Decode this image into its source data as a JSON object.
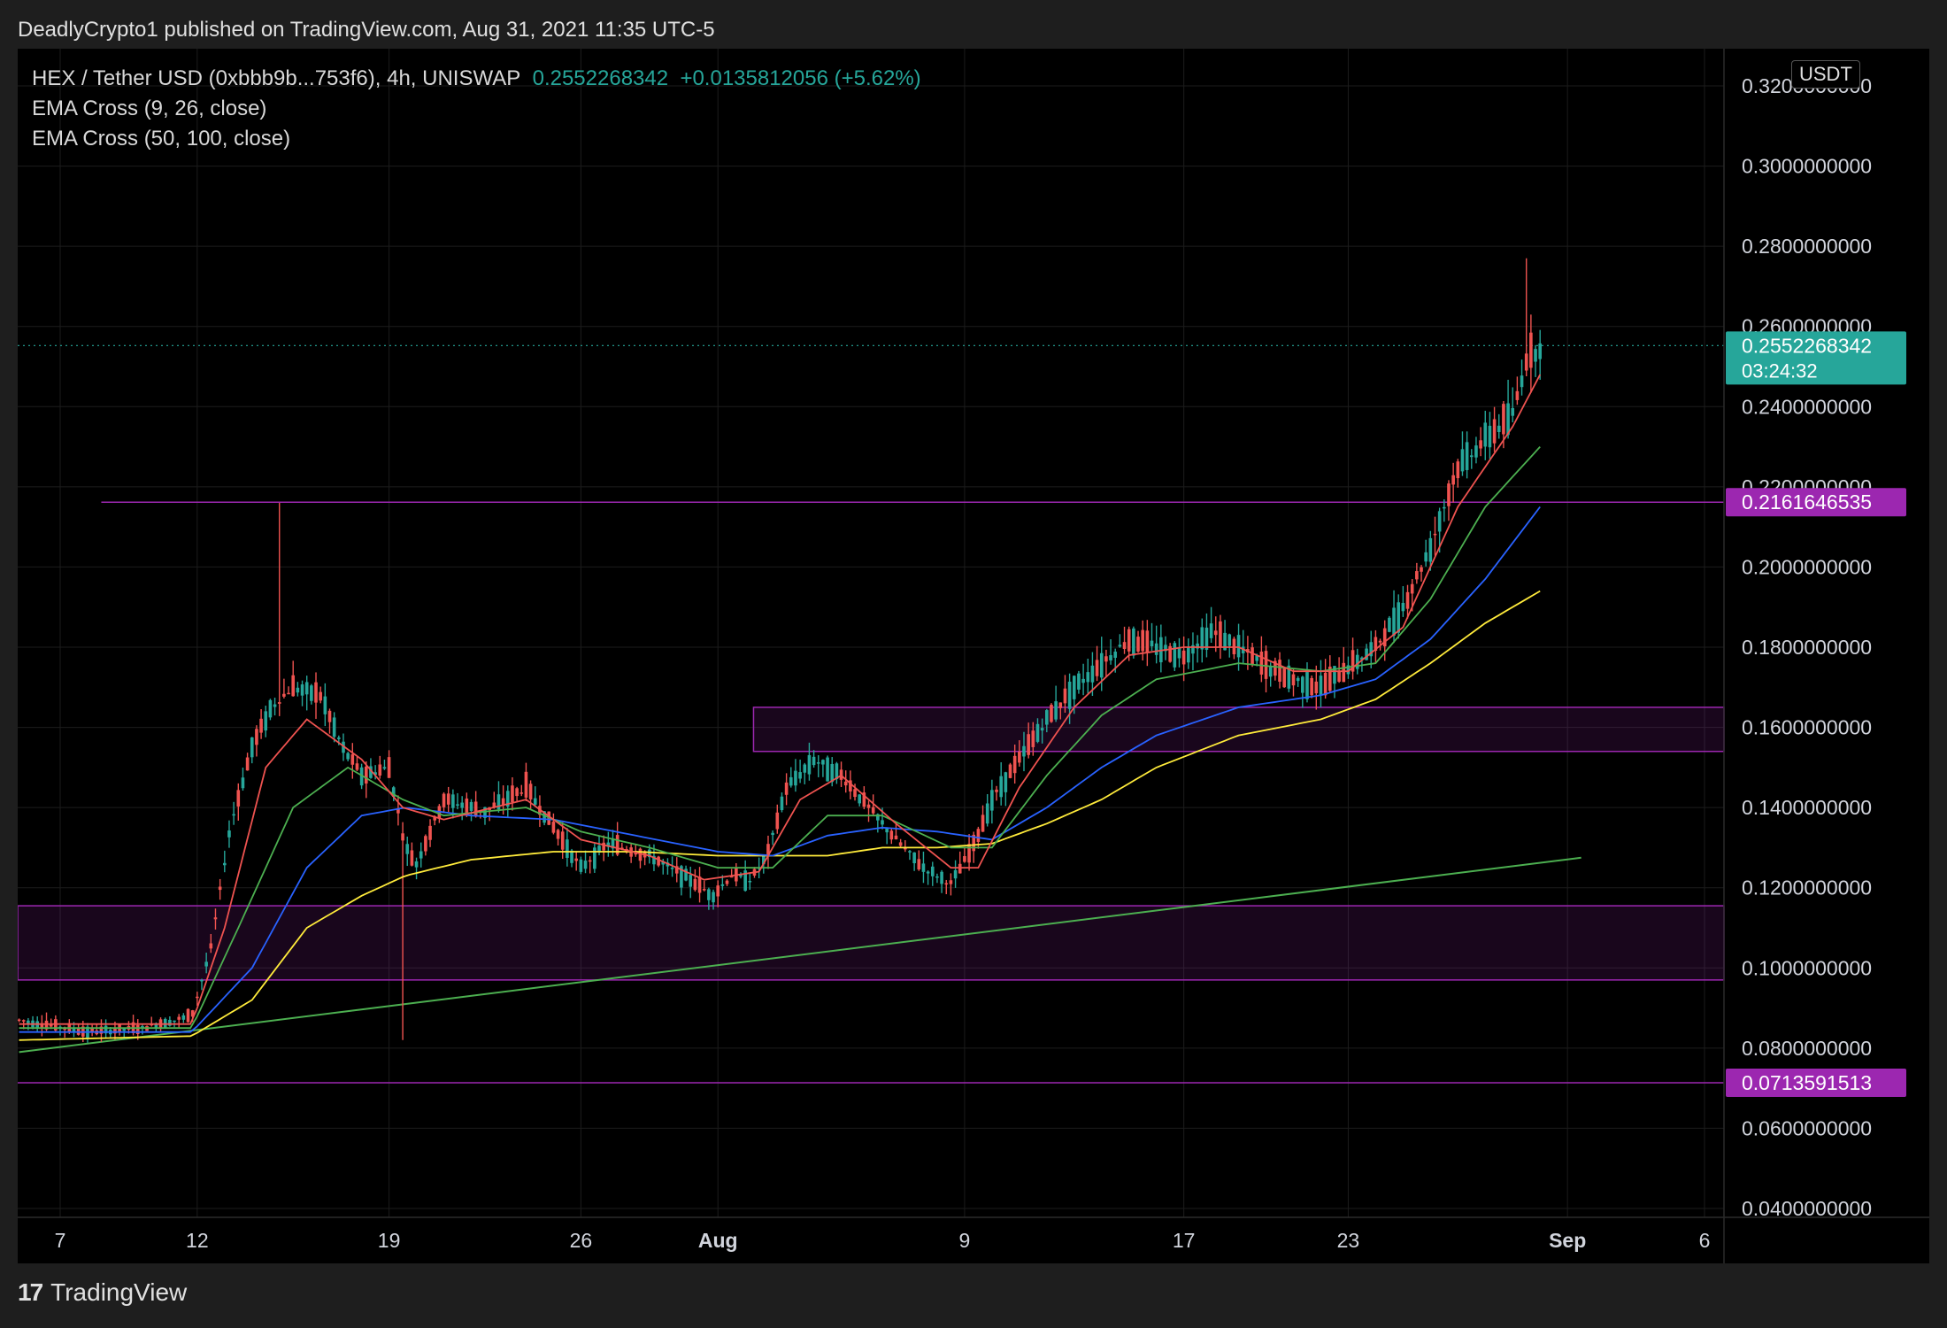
{
  "publisher_line": "DeadlyCrypto1 published on TradingView.com, Aug 31, 2021 11:35 UTC-5",
  "legend": {
    "symbol": "HEX / Tether USD (0xbbb9b...753f6), 4h, UNISWAP",
    "price": "0.2552268342",
    "change": "+0.0135812056 (+5.62%)",
    "ema1": "EMA Cross (9, 26, close)",
    "ema2": "EMA Cross (50, 100, close)"
  },
  "currency_badge": "USDT",
  "footer": {
    "logo": "17",
    "brand": "TradingView"
  },
  "colors": {
    "up": "#26a69a",
    "down": "#ef5350",
    "zone": "#9c27b0",
    "ema9": "#ef5350",
    "ema26": "#4caf50",
    "ema50": "#2962ff",
    "ema100": "#ffeb3b",
    "trendline": "#4caf50",
    "price_tag": "#26a69a",
    "level_tag": "#9c27b0"
  },
  "chart_data": {
    "type": "candlestick",
    "timeframe": "4h",
    "ylim": [
      0.04,
      0.32
    ],
    "y_ticks": [
      "0.3200000000",
      "0.3000000000",
      "0.2800000000",
      "0.2600000000",
      "0.2400000000",
      "0.2200000000",
      "0.2000000000",
      "0.1800000000",
      "0.1600000000",
      "0.1400000000",
      "0.1200000000",
      "0.1000000000",
      "0.0800000000",
      "0.0600000000",
      "0.0400000000"
    ],
    "x_ticks": [
      {
        "label": "7",
        "day": 7
      },
      {
        "label": "12",
        "day": 12
      },
      {
        "label": "19",
        "day": 19
      },
      {
        "label": "26",
        "day": 26
      },
      {
        "label": "Aug",
        "day": 31,
        "bold": true
      },
      {
        "label": "9",
        "day": 40
      },
      {
        "label": "17",
        "day": 48
      },
      {
        "label": "23",
        "day": 54
      },
      {
        "label": "Sep",
        "day": 62,
        "bold": true
      },
      {
        "label": "6",
        "day": 67
      }
    ],
    "last_price": {
      "value": 0.2552268342,
      "label": "0.2552268342",
      "countdown": "03:24:32"
    },
    "horizontal_levels": [
      {
        "value": 0.2161646535,
        "label": "0.2161646535"
      },
      {
        "value": 0.0713591513,
        "label": "0.0713591513"
      }
    ],
    "zones": [
      {
        "low": 0.154,
        "high": 0.165
      },
      {
        "low": 0.097,
        "high": 0.1155
      }
    ],
    "trendline": {
      "from": {
        "day": 5.5,
        "value": 0.079
      },
      "to": {
        "day": 62.5,
        "value": 0.1275
      }
    },
    "close_anchors": [
      [
        5.5,
        0.087
      ],
      [
        8,
        0.084
      ],
      [
        10,
        0.085
      ],
      [
        11.8,
        0.088
      ],
      [
        12.5,
        0.105
      ],
      [
        13.2,
        0.135
      ],
      [
        14,
        0.155
      ],
      [
        14.7,
        0.165
      ],
      [
        15.5,
        0.17
      ],
      [
        16.5,
        0.168
      ],
      [
        17.3,
        0.155
      ],
      [
        18,
        0.148
      ],
      [
        19,
        0.15
      ],
      [
        19.6,
        0.13
      ],
      [
        20,
        0.126
      ],
      [
        21,
        0.142
      ],
      [
        22.5,
        0.139
      ],
      [
        24,
        0.145
      ],
      [
        25,
        0.135
      ],
      [
        26,
        0.125
      ],
      [
        27,
        0.131
      ],
      [
        28.5,
        0.128
      ],
      [
        30,
        0.122
      ],
      [
        30.8,
        0.118
      ],
      [
        31.5,
        0.123
      ],
      [
        32.2,
        0.122
      ],
      [
        32.8,
        0.128
      ],
      [
        33.5,
        0.145
      ],
      [
        34.5,
        0.152
      ],
      [
        35.5,
        0.148
      ],
      [
        36.5,
        0.14
      ],
      [
        37.5,
        0.132
      ],
      [
        38.5,
        0.125
      ],
      [
        39.5,
        0.121
      ],
      [
        40.3,
        0.13
      ],
      [
        41,
        0.142
      ],
      [
        42,
        0.152
      ],
      [
        43,
        0.162
      ],
      [
        44,
        0.17
      ],
      [
        45,
        0.176
      ],
      [
        46,
        0.182
      ],
      [
        47,
        0.18
      ],
      [
        48,
        0.178
      ],
      [
        49,
        0.184
      ],
      [
        50,
        0.18
      ],
      [
        51,
        0.175
      ],
      [
        52,
        0.172
      ],
      [
        53,
        0.17
      ],
      [
        54,
        0.175
      ],
      [
        55,
        0.18
      ],
      [
        56,
        0.19
      ],
      [
        57,
        0.205
      ],
      [
        58,
        0.225
      ],
      [
        59,
        0.232
      ],
      [
        60,
        0.238
      ],
      [
        60.5,
        0.252
      ],
      [
        61,
        0.255
      ]
    ],
    "ema_9_anchors": [
      [
        5.5,
        0.086
      ],
      [
        11.8,
        0.086
      ],
      [
        13,
        0.11
      ],
      [
        14.5,
        0.15
      ],
      [
        16,
        0.162
      ],
      [
        18,
        0.152
      ],
      [
        19.5,
        0.14
      ],
      [
        21,
        0.137
      ],
      [
        24,
        0.142
      ],
      [
        26,
        0.132
      ],
      [
        28.5,
        0.128
      ],
      [
        30.5,
        0.122
      ],
      [
        32.5,
        0.124
      ],
      [
        34,
        0.142
      ],
      [
        35.5,
        0.148
      ],
      [
        37.5,
        0.136
      ],
      [
        39.5,
        0.125
      ],
      [
        40.5,
        0.125
      ],
      [
        42,
        0.145
      ],
      [
        44,
        0.165
      ],
      [
        46,
        0.178
      ],
      [
        48,
        0.18
      ],
      [
        50,
        0.18
      ],
      [
        52,
        0.174
      ],
      [
        54,
        0.174
      ],
      [
        56,
        0.185
      ],
      [
        58,
        0.215
      ],
      [
        60,
        0.235
      ],
      [
        61,
        0.248
      ]
    ],
    "ema_26_anchors": [
      [
        5.5,
        0.085
      ],
      [
        11.8,
        0.085
      ],
      [
        13.5,
        0.11
      ],
      [
        15.5,
        0.14
      ],
      [
        17.5,
        0.15
      ],
      [
        19.5,
        0.142
      ],
      [
        21,
        0.138
      ],
      [
        24,
        0.14
      ],
      [
        26,
        0.134
      ],
      [
        28.5,
        0.13
      ],
      [
        31,
        0.125
      ],
      [
        33,
        0.125
      ],
      [
        35,
        0.138
      ],
      [
        37,
        0.138
      ],
      [
        39.5,
        0.13
      ],
      [
        41,
        0.13
      ],
      [
        43,
        0.148
      ],
      [
        45,
        0.163
      ],
      [
        47,
        0.172
      ],
      [
        50,
        0.176
      ],
      [
        53,
        0.174
      ],
      [
        55,
        0.176
      ],
      [
        57,
        0.192
      ],
      [
        59,
        0.215
      ],
      [
        61,
        0.23
      ]
    ],
    "ema_50_anchors": [
      [
        5.5,
        0.084
      ],
      [
        11.8,
        0.084
      ],
      [
        14,
        0.1
      ],
      [
        16,
        0.125
      ],
      [
        18,
        0.138
      ],
      [
        19.6,
        0.14
      ],
      [
        22,
        0.138
      ],
      [
        25,
        0.137
      ],
      [
        28,
        0.133
      ],
      [
        31,
        0.129
      ],
      [
        33,
        0.128
      ],
      [
        35,
        0.133
      ],
      [
        37,
        0.135
      ],
      [
        39,
        0.134
      ],
      [
        41,
        0.132
      ],
      [
        43,
        0.14
      ],
      [
        45,
        0.15
      ],
      [
        47,
        0.158
      ],
      [
        50,
        0.165
      ],
      [
        53,
        0.168
      ],
      [
        55,
        0.172
      ],
      [
        57,
        0.182
      ],
      [
        59,
        0.197
      ],
      [
        61,
        0.215
      ]
    ],
    "ema_100_anchors": [
      [
        5.5,
        0.082
      ],
      [
        11.8,
        0.083
      ],
      [
        14,
        0.092
      ],
      [
        16,
        0.11
      ],
      [
        18,
        0.118
      ],
      [
        19.6,
        0.123
      ],
      [
        22,
        0.127
      ],
      [
        25,
        0.129
      ],
      [
        28,
        0.129
      ],
      [
        31,
        0.128
      ],
      [
        33,
        0.128
      ],
      [
        35,
        0.128
      ],
      [
        37,
        0.13
      ],
      [
        39,
        0.13
      ],
      [
        41,
        0.131
      ],
      [
        43,
        0.136
      ],
      [
        45,
        0.142
      ],
      [
        47,
        0.15
      ],
      [
        50,
        0.158
      ],
      [
        53,
        0.162
      ],
      [
        55,
        0.167
      ],
      [
        57,
        0.176
      ],
      [
        59,
        0.186
      ],
      [
        61,
        0.194
      ]
    ]
  }
}
